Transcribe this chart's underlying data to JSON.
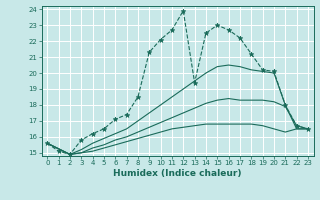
{
  "xlabel": "Humidex (Indice chaleur)",
  "ylabel": "",
  "xlim": [
    -0.5,
    23.5
  ],
  "ylim": [
    14.8,
    24.2
  ],
  "yticks": [
    15,
    16,
    17,
    18,
    19,
    20,
    21,
    22,
    23,
    24
  ],
  "xticks": [
    0,
    1,
    2,
    3,
    4,
    5,
    6,
    7,
    8,
    9,
    10,
    11,
    12,
    13,
    14,
    15,
    16,
    17,
    18,
    19,
    20,
    21,
    22,
    23
  ],
  "background_color": "#c8e8e8",
  "grid_color": "#ffffff",
  "line_color": "#1a6b5a",
  "lines": [
    {
      "x": [
        0,
        1,
        2,
        3,
        4,
        5,
        6,
        7,
        8,
        9,
        10,
        11,
        12,
        13,
        14,
        15,
        16,
        17,
        18,
        19,
        20,
        21,
        22,
        23
      ],
      "y": [
        15.6,
        15.1,
        14.9,
        15.8,
        16.2,
        16.5,
        17.1,
        17.4,
        18.5,
        21.3,
        22.1,
        22.7,
        23.9,
        19.4,
        22.5,
        23.0,
        22.7,
        22.2,
        21.2,
        20.2,
        20.1,
        18.0,
        16.7,
        16.5
      ],
      "marker": "*",
      "linestyle": "--",
      "linewidth": 0.8,
      "markersize": 3.5
    },
    {
      "x": [
        0,
        2,
        3,
        4,
        5,
        6,
        7,
        8,
        9,
        10,
        11,
        12,
        13,
        14,
        15,
        16,
        17,
        18,
        19,
        20,
        21,
        22,
        23
      ],
      "y": [
        15.6,
        14.9,
        15.2,
        15.6,
        15.9,
        16.2,
        16.5,
        17.0,
        17.5,
        18.0,
        18.5,
        19.0,
        19.5,
        20.0,
        20.4,
        20.5,
        20.4,
        20.2,
        20.1,
        20.0,
        18.0,
        16.5,
        16.5
      ],
      "marker": null,
      "linestyle": "-",
      "linewidth": 0.8,
      "markersize": 0
    },
    {
      "x": [
        0,
        2,
        3,
        4,
        5,
        6,
        7,
        8,
        9,
        10,
        11,
        12,
        13,
        14,
        15,
        16,
        17,
        18,
        19,
        20,
        21,
        22,
        23
      ],
      "y": [
        15.6,
        14.9,
        15.0,
        15.3,
        15.5,
        15.8,
        16.0,
        16.3,
        16.6,
        16.9,
        17.2,
        17.5,
        17.8,
        18.1,
        18.3,
        18.4,
        18.3,
        18.3,
        18.3,
        18.2,
        17.9,
        16.7,
        16.5
      ],
      "marker": null,
      "linestyle": "-",
      "linewidth": 0.8,
      "markersize": 0
    },
    {
      "x": [
        0,
        2,
        3,
        4,
        5,
        6,
        7,
        8,
        9,
        10,
        11,
        12,
        13,
        14,
        15,
        16,
        17,
        18,
        19,
        20,
        21,
        22,
        23
      ],
      "y": [
        15.6,
        14.9,
        15.0,
        15.1,
        15.3,
        15.5,
        15.7,
        15.9,
        16.1,
        16.3,
        16.5,
        16.6,
        16.7,
        16.8,
        16.8,
        16.8,
        16.8,
        16.8,
        16.7,
        16.5,
        16.3,
        16.5,
        16.5
      ],
      "marker": null,
      "linestyle": "-",
      "linewidth": 0.8,
      "markersize": 0
    }
  ],
  "tick_fontsize": 5.0,
  "xlabel_fontsize": 6.5
}
